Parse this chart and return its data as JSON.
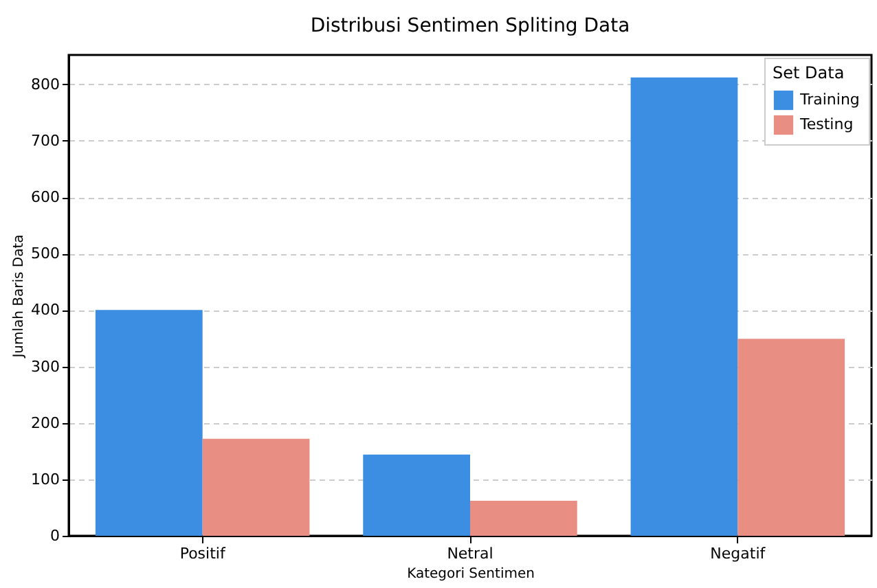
{
  "chart_data": {
    "type": "bar",
    "title": "Distribusi Sentimen Spliting Data",
    "xlabel": "Kategori Sentimen",
    "ylabel": "Jumlah Baris Data",
    "legend_title": "Set Data",
    "categories": [
      "Positif",
      "Netral",
      "Negatif"
    ],
    "series": [
      {
        "name": "Training",
        "color": "#3b8ee2",
        "values": [
          400,
          144,
          812
        ]
      },
      {
        "name": "Testing",
        "color": "#e88e82",
        "values": [
          172,
          62,
          349
        ]
      }
    ],
    "ylim": [
      0,
      852
    ],
    "yticks": [
      0,
      100,
      200,
      300,
      400,
      500,
      600,
      700,
      800
    ],
    "grid": "y",
    "legend": "top right"
  }
}
